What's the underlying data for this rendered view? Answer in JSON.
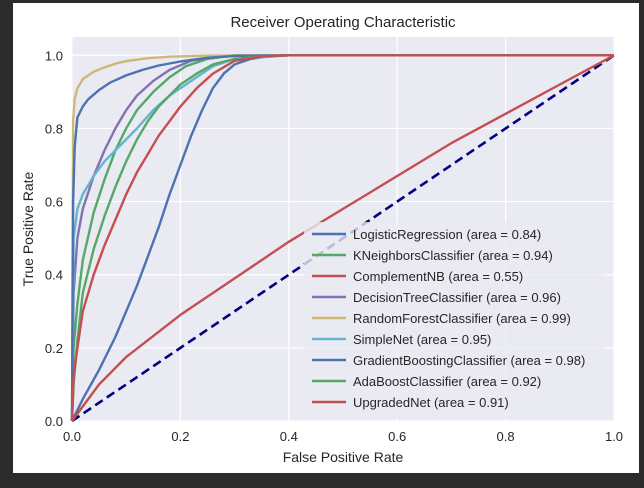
{
  "chart_data": {
    "type": "line",
    "title": "Receiver Operating Characteristic",
    "xlabel": "False Positive Rate",
    "ylabel": "True Positive Rate",
    "xlim": [
      0.0,
      1.0
    ],
    "ylim": [
      0.0,
      1.05
    ],
    "xticks": [
      "0.0",
      "0.2",
      "0.4",
      "0.6",
      "0.8",
      "1.0"
    ],
    "yticks": [
      "0.0",
      "0.2",
      "0.4",
      "0.6",
      "0.8",
      "1.0"
    ],
    "grid": true,
    "legend_position": "lower-right",
    "reference_line": {
      "x": [
        0,
        1
      ],
      "y": [
        0,
        1
      ],
      "color": "#000080",
      "style": "dashed"
    },
    "series": [
      {
        "name": "LogisticRegression (area = 0.84)",
        "color": "#4c72b0",
        "x": [
          0,
          0.02,
          0.05,
          0.08,
          0.1,
          0.12,
          0.14,
          0.16,
          0.18,
          0.2,
          0.22,
          0.24,
          0.26,
          0.28,
          0.3,
          0.33,
          0.36,
          0.4,
          0.5,
          1.0
        ],
        "y": [
          0,
          0.06,
          0.14,
          0.23,
          0.3,
          0.37,
          0.45,
          0.53,
          0.62,
          0.7,
          0.78,
          0.85,
          0.91,
          0.95,
          0.975,
          0.99,
          0.997,
          1.0,
          1.0,
          1.0
        ]
      },
      {
        "name": "KNeighborsClassifier (area = 0.94)",
        "color": "#55a868",
        "x": [
          0,
          0.003,
          0.01,
          0.02,
          0.04,
          0.06,
          0.08,
          0.1,
          0.12,
          0.15,
          0.18,
          0.21,
          0.25,
          0.3,
          0.4,
          1.0
        ],
        "y": [
          0,
          0.2,
          0.32,
          0.44,
          0.57,
          0.66,
          0.74,
          0.8,
          0.85,
          0.9,
          0.94,
          0.97,
          0.99,
          1.0,
          1.0,
          1.0
        ]
      },
      {
        "name": "ComplementNB (area = 0.55)",
        "color": "#c44e52",
        "x": [
          0,
          0.05,
          0.1,
          0.2,
          0.3,
          0.4,
          0.5,
          0.6,
          0.7,
          0.8,
          0.9,
          1.0
        ],
        "y": [
          0,
          0.1,
          0.175,
          0.29,
          0.39,
          0.49,
          0.58,
          0.67,
          0.76,
          0.84,
          0.92,
          1.0
        ]
      },
      {
        "name": "DecisionTreeClassifier (area = 0.96)",
        "color": "#8172b2",
        "x": [
          0,
          0.003,
          0.01,
          0.02,
          0.04,
          0.06,
          0.08,
          0.1,
          0.12,
          0.15,
          0.18,
          0.22,
          0.26,
          0.3,
          0.4,
          1.0
        ],
        "y": [
          0,
          0.35,
          0.5,
          0.58,
          0.67,
          0.74,
          0.8,
          0.85,
          0.89,
          0.93,
          0.96,
          0.985,
          0.995,
          1.0,
          1.0,
          1.0
        ]
      },
      {
        "name": "RandomForestClassifier (area = 0.99)",
        "color": "#ccb974",
        "x": [
          0,
          0.002,
          0.005,
          0.01,
          0.02,
          0.04,
          0.06,
          0.08,
          0.1,
          0.14,
          0.18,
          0.25,
          0.35,
          1.0
        ],
        "y": [
          0,
          0.82,
          0.88,
          0.91,
          0.935,
          0.955,
          0.967,
          0.977,
          0.984,
          0.992,
          0.996,
          0.999,
          1.0,
          1.0
        ]
      },
      {
        "name": "SimpleNet (area = 0.95)",
        "color": "#64b5cd",
        "x": [
          0,
          0.003,
          0.01,
          0.02,
          0.04,
          0.06,
          0.08,
          0.1,
          0.12,
          0.15,
          0.18,
          0.22,
          0.26,
          0.3,
          0.4,
          1.0
        ],
        "y": [
          0,
          0.5,
          0.58,
          0.62,
          0.67,
          0.71,
          0.74,
          0.77,
          0.8,
          0.85,
          0.89,
          0.93,
          0.97,
          0.99,
          1.0,
          1.0
        ]
      },
      {
        "name": "GradientBoostingClassifier (area = 0.98)",
        "color": "#4c72b0",
        "x": [
          0,
          0.002,
          0.005,
          0.01,
          0.02,
          0.03,
          0.05,
          0.07,
          0.1,
          0.13,
          0.16,
          0.2,
          0.25,
          0.3,
          0.4,
          1.0
        ],
        "y": [
          0,
          0.6,
          0.75,
          0.83,
          0.86,
          0.88,
          0.905,
          0.925,
          0.945,
          0.96,
          0.972,
          0.983,
          0.993,
          0.998,
          1.0,
          1.0
        ]
      },
      {
        "name": "AdaBoostClassifier (area = 0.92)",
        "color": "#55a868",
        "x": [
          0,
          0.003,
          0.01,
          0.02,
          0.04,
          0.06,
          0.08,
          0.1,
          0.12,
          0.14,
          0.16,
          0.18,
          0.2,
          0.23,
          0.26,
          0.3,
          0.35,
          0.4,
          1.0
        ],
        "y": [
          0,
          0.1,
          0.22,
          0.35,
          0.47,
          0.56,
          0.64,
          0.71,
          0.77,
          0.82,
          0.86,
          0.89,
          0.92,
          0.95,
          0.975,
          0.99,
          0.997,
          1.0,
          1.0
        ]
      },
      {
        "name": "UpgradedNet (area = 0.91)",
        "color": "#c44e52",
        "x": [
          0,
          0.003,
          0.01,
          0.02,
          0.04,
          0.06,
          0.08,
          0.1,
          0.12,
          0.14,
          0.16,
          0.18,
          0.2,
          0.23,
          0.26,
          0.3,
          0.35,
          0.4,
          1.0
        ],
        "y": [
          0,
          0.12,
          0.2,
          0.3,
          0.4,
          0.48,
          0.55,
          0.62,
          0.68,
          0.73,
          0.78,
          0.82,
          0.86,
          0.91,
          0.95,
          0.985,
          0.997,
          1.0,
          1.0
        ]
      }
    ]
  }
}
